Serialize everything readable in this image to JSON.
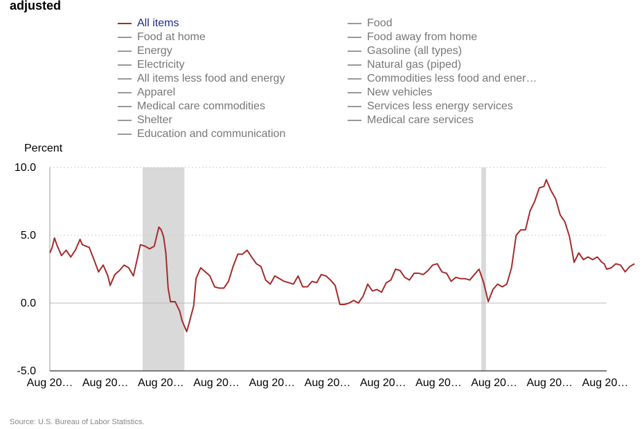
{
  "title": "adjusted",
  "legend": {
    "left": [
      "All items",
      "Food at home",
      "Energy",
      "Electricity",
      "All items less food and energy",
      "Apparel",
      "Medical care commodities",
      "Shelter",
      "Education and communication"
    ],
    "right": [
      "Food",
      "Food away from home",
      "Gasoline (all types)",
      "Natural gas (piped)",
      "Commodities less food and ener…",
      "New vehicles",
      "Services less energy services",
      "Medical care services"
    ],
    "active": "All items",
    "active_color": "#a52a2a",
    "inactive_color": "#999999"
  },
  "source": "Source: U.S. Bureau of Labor Statistics.",
  "chart_data": {
    "type": "line",
    "title": "",
    "ylabel": "Percent",
    "xlabel": "",
    "ylim": [
      -5.0,
      10.0
    ],
    "yticks": [
      "10.0",
      "5.0",
      "0.0",
      "-5.0"
    ],
    "ytick_values": [
      10,
      5,
      0,
      -5
    ],
    "xticks": [
      "Aug 20…",
      "Aug 20…",
      "Aug 20…",
      "Aug 20…",
      "Aug 20…",
      "Aug 20…",
      "Aug 20…",
      "Aug 20…",
      "Aug 20…",
      "Aug 20…",
      "Aug 20…"
    ],
    "x_start": "2004-08",
    "x_end": "2024-08",
    "recessions": [
      [
        "2007-12",
        "2009-06"
      ],
      [
        "2020-02",
        "2020-04"
      ]
    ],
    "series": [
      {
        "name": "All items",
        "color": "#a52a2a",
        "points": [
          [
            "2004-08",
            3.7
          ],
          [
            "2004-09",
            4.1
          ],
          [
            "2004-10",
            4.8
          ],
          [
            "2004-11",
            4.3
          ],
          [
            "2005-01",
            3.5
          ],
          [
            "2005-03",
            3.9
          ],
          [
            "2005-05",
            3.4
          ],
          [
            "2005-07",
            3.9
          ],
          [
            "2005-09",
            4.7
          ],
          [
            "2005-10",
            4.3
          ],
          [
            "2006-01",
            4.1
          ],
          [
            "2006-03",
            3.2
          ],
          [
            "2006-05",
            2.3
          ],
          [
            "2006-07",
            2.8
          ],
          [
            "2006-09",
            2.0
          ],
          [
            "2006-10",
            1.3
          ],
          [
            "2006-12",
            2.1
          ],
          [
            "2007-02",
            2.4
          ],
          [
            "2007-04",
            2.8
          ],
          [
            "2007-06",
            2.6
          ],
          [
            "2007-08",
            2.0
          ],
          [
            "2007-10",
            3.5
          ],
          [
            "2007-11",
            4.3
          ],
          [
            "2008-01",
            4.2
          ],
          [
            "2008-03",
            4.0
          ],
          [
            "2008-05",
            4.2
          ],
          [
            "2008-07",
            5.6
          ],
          [
            "2008-08",
            5.4
          ],
          [
            "2008-09",
            4.9
          ],
          [
            "2008-10",
            3.7
          ],
          [
            "2008-11",
            1.1
          ],
          [
            "2008-12",
            0.1
          ],
          [
            "2009-02",
            0.1
          ],
          [
            "2009-04",
            -0.6
          ],
          [
            "2009-05",
            -1.3
          ],
          [
            "2009-07",
            -2.1
          ],
          [
            "2009-08",
            -1.5
          ],
          [
            "2009-10",
            -0.2
          ],
          [
            "2009-11",
            1.8
          ],
          [
            "2010-01",
            2.6
          ],
          [
            "2010-03",
            2.3
          ],
          [
            "2010-05",
            2.0
          ],
          [
            "2010-07",
            1.2
          ],
          [
            "2010-09",
            1.1
          ],
          [
            "2010-11",
            1.1
          ],
          [
            "2011-01",
            1.6
          ],
          [
            "2011-03",
            2.7
          ],
          [
            "2011-05",
            3.6
          ],
          [
            "2011-07",
            3.6
          ],
          [
            "2011-09",
            3.9
          ],
          [
            "2011-11",
            3.4
          ],
          [
            "2012-01",
            2.9
          ],
          [
            "2012-03",
            2.7
          ],
          [
            "2012-05",
            1.7
          ],
          [
            "2012-07",
            1.4
          ],
          [
            "2012-09",
            2.0
          ],
          [
            "2012-11",
            1.8
          ],
          [
            "2013-01",
            1.6
          ],
          [
            "2013-03",
            1.5
          ],
          [
            "2013-05",
            1.4
          ],
          [
            "2013-07",
            2.0
          ],
          [
            "2013-09",
            1.2
          ],
          [
            "2013-11",
            1.2
          ],
          [
            "2014-01",
            1.6
          ],
          [
            "2014-03",
            1.5
          ],
          [
            "2014-05",
            2.1
          ],
          [
            "2014-07",
            2.0
          ],
          [
            "2014-09",
            1.7
          ],
          [
            "2014-11",
            1.3
          ],
          [
            "2015-01",
            -0.1
          ],
          [
            "2015-03",
            -0.1
          ],
          [
            "2015-05",
            0.0
          ],
          [
            "2015-07",
            0.2
          ],
          [
            "2015-09",
            0.0
          ],
          [
            "2015-11",
            0.5
          ],
          [
            "2016-01",
            1.4
          ],
          [
            "2016-03",
            0.9
          ],
          [
            "2016-05",
            1.0
          ],
          [
            "2016-07",
            0.8
          ],
          [
            "2016-09",
            1.5
          ],
          [
            "2016-11",
            1.7
          ],
          [
            "2017-01",
            2.5
          ],
          [
            "2017-03",
            2.4
          ],
          [
            "2017-05",
            1.9
          ],
          [
            "2017-07",
            1.7
          ],
          [
            "2017-09",
            2.2
          ],
          [
            "2017-11",
            2.2
          ],
          [
            "2018-01",
            2.1
          ],
          [
            "2018-03",
            2.4
          ],
          [
            "2018-05",
            2.8
          ],
          [
            "2018-07",
            2.9
          ],
          [
            "2018-09",
            2.3
          ],
          [
            "2018-11",
            2.2
          ],
          [
            "2019-01",
            1.6
          ],
          [
            "2019-03",
            1.9
          ],
          [
            "2019-05",
            1.8
          ],
          [
            "2019-07",
            1.8
          ],
          [
            "2019-09",
            1.7
          ],
          [
            "2019-11",
            2.1
          ],
          [
            "2020-01",
            2.5
          ],
          [
            "2020-03",
            1.5
          ],
          [
            "2020-05",
            0.1
          ],
          [
            "2020-07",
            1.0
          ],
          [
            "2020-09",
            1.4
          ],
          [
            "2020-11",
            1.2
          ],
          [
            "2021-01",
            1.4
          ],
          [
            "2021-03",
            2.6
          ],
          [
            "2021-05",
            5.0
          ],
          [
            "2021-07",
            5.4
          ],
          [
            "2021-09",
            5.4
          ],
          [
            "2021-11",
            6.8
          ],
          [
            "2022-01",
            7.5
          ],
          [
            "2022-03",
            8.5
          ],
          [
            "2022-05",
            8.6
          ],
          [
            "2022-06",
            9.1
          ],
          [
            "2022-08",
            8.3
          ],
          [
            "2022-10",
            7.7
          ],
          [
            "2022-12",
            6.5
          ],
          [
            "2023-02",
            6.0
          ],
          [
            "2023-04",
            4.9
          ],
          [
            "2023-06",
            3.0
          ],
          [
            "2023-08",
            3.7
          ],
          [
            "2023-10",
            3.2
          ],
          [
            "2023-12",
            3.4
          ],
          [
            "2024-02",
            3.2
          ],
          [
            "2024-04",
            3.4
          ],
          [
            "2024-06",
            3.0
          ],
          [
            "2024-07",
            2.9
          ],
          [
            "2024-08",
            2.5
          ],
          [
            "2024-10",
            2.6
          ],
          [
            "2024-12",
            2.9
          ],
          [
            "2025-02",
            2.8
          ],
          [
            "2025-04",
            2.3
          ],
          [
            "2025-06",
            2.7
          ],
          [
            "2025-08",
            2.9
          ]
        ]
      }
    ]
  }
}
